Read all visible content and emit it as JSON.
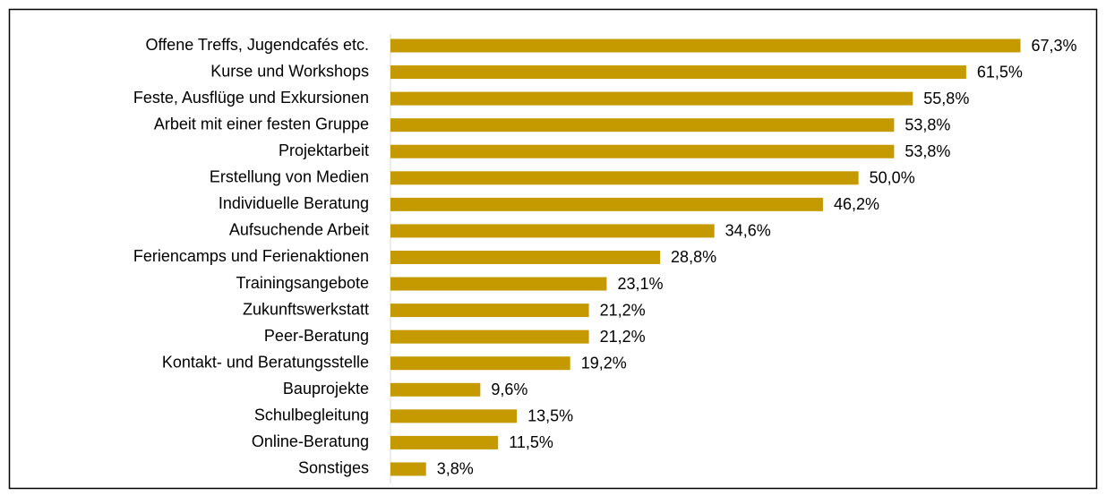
{
  "chart_data": {
    "type": "bar",
    "orientation": "horizontal",
    "categories": [
      "Offene Treffs, Jugendcafés etc.",
      "Kurse und Workshops",
      "Feste, Ausflüge und Exkursionen",
      "Arbeit mit einer festen Gruppe",
      "Projektarbeit",
      "Erstellung von Medien",
      "Individuelle Beratung",
      "Aufsuchende Arbeit",
      "Feriencamps und Ferienaktionen",
      "Trainingsangebote",
      "Zukunftswerkstatt",
      "Peer-Beratung",
      "Kontakt- und Beratungsstelle",
      "Bauprojekte",
      "Schulbegleitung",
      "Online-Beratung",
      "Sonstiges"
    ],
    "values": [
      67.3,
      61.5,
      55.8,
      53.8,
      53.8,
      50.0,
      46.2,
      34.6,
      28.8,
      23.1,
      21.2,
      21.2,
      19.2,
      9.6,
      13.5,
      11.5,
      3.8
    ],
    "value_labels": [
      "67,3%",
      "61,5%",
      "55,8%",
      "53,8%",
      "53,8%",
      "50,0%",
      "46,2%",
      "34,6%",
      "28,8%",
      "23,1%",
      "21,2%",
      "21,2%",
      "19,2%",
      "9,6%",
      "13,5%",
      "11,5%",
      "3,8%"
    ],
    "color": "#c49a00",
    "xlim": [
      0,
      75
    ]
  }
}
